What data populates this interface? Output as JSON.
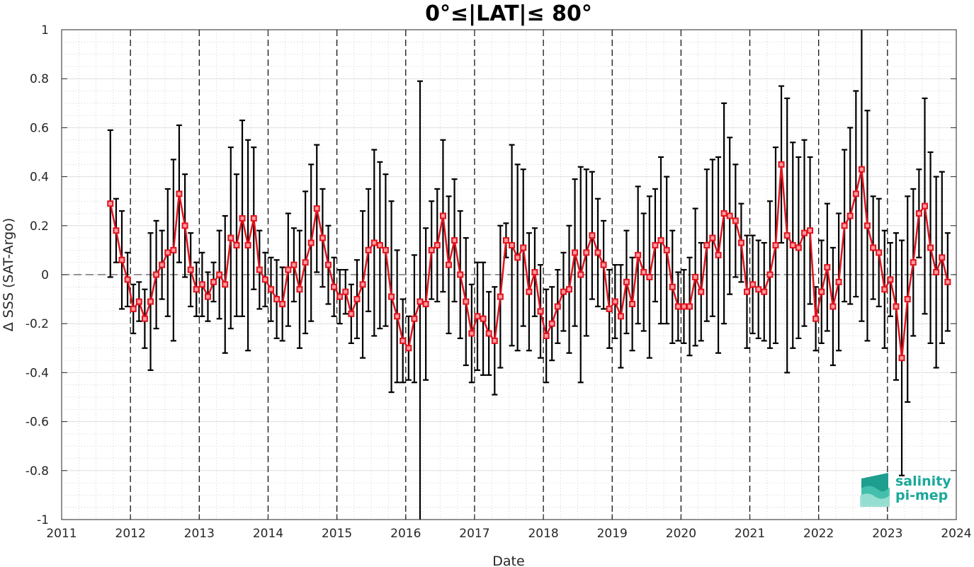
{
  "chart_data": {
    "type": "line",
    "title": "0°≤|LAT|≤ 80°",
    "xlabel": "Date",
    "ylabel": "Δ SSS (SAT-Argo)",
    "xlim": [
      2011,
      2024
    ],
    "ylim": [
      -1,
      1
    ],
    "xticks": [
      "2011",
      "2012",
      "2013",
      "2014",
      "2015",
      "2016",
      "2017",
      "2018",
      "2019",
      "2020",
      "2021",
      "2022",
      "2023",
      "2024"
    ],
    "yticks": [
      "1",
      "0.8",
      "0.6",
      "0.4",
      "0.2",
      "0",
      "-0.2",
      "-0.4",
      "-0.6",
      "-0.8",
      "-1"
    ],
    "grid": true,
    "year_dividers": "dashed vertical lines at each year boundary",
    "zero_line": "dashed horizontal line at 0",
    "series": [
      {
        "color": "#e0141e",
        "marker": "square",
        "error_bar_color": "#000000",
        "x": [
          2011.708,
          2011.792,
          2011.875,
          2011.958,
          2012.042,
          2012.125,
          2012.208,
          2012.292,
          2012.375,
          2012.458,
          2012.542,
          2012.625,
          2012.708,
          2012.792,
          2012.875,
          2012.958,
          2013.042,
          2013.125,
          2013.208,
          2013.292,
          2013.375,
          2013.458,
          2013.542,
          2013.625,
          2013.708,
          2013.792,
          2013.875,
          2013.958,
          2014.042,
          2014.125,
          2014.208,
          2014.292,
          2014.375,
          2014.458,
          2014.542,
          2014.625,
          2014.708,
          2014.792,
          2014.875,
          2014.958,
          2015.042,
          2015.125,
          2015.208,
          2015.292,
          2015.375,
          2015.458,
          2015.542,
          2015.625,
          2015.708,
          2015.792,
          2015.875,
          2015.958,
          2016.042,
          2016.125,
          2016.208,
          2016.292,
          2016.375,
          2016.458,
          2016.542,
          2016.625,
          2016.708,
          2016.792,
          2016.875,
          2016.958,
          2017.042,
          2017.125,
          2017.208,
          2017.292,
          2017.375,
          2017.458,
          2017.542,
          2017.625,
          2017.708,
          2017.792,
          2017.875,
          2017.958,
          2018.042,
          2018.125,
          2018.208,
          2018.292,
          2018.375,
          2018.458,
          2018.542,
          2018.625,
          2018.708,
          2018.792,
          2018.875,
          2018.958,
          2019.042,
          2019.125,
          2019.208,
          2019.292,
          2019.375,
          2019.458,
          2019.542,
          2019.625,
          2019.708,
          2019.792,
          2019.875,
          2019.958,
          2020.042,
          2020.125,
          2020.208,
          2020.292,
          2020.375,
          2020.458,
          2020.542,
          2020.625,
          2020.708,
          2020.792,
          2020.875,
          2020.958,
          2021.042,
          2021.125,
          2021.208,
          2021.292,
          2021.375,
          2021.458,
          2021.542,
          2021.625,
          2021.708,
          2021.792,
          2021.875,
          2021.958,
          2022.042,
          2022.125,
          2022.208,
          2022.292,
          2022.375,
          2022.458,
          2022.542,
          2022.625,
          2022.708,
          2022.792,
          2022.875,
          2022.958,
          2023.042,
          2023.125,
          2023.208,
          2023.292,
          2023.375,
          2023.458,
          2023.542,
          2023.625,
          2023.708,
          2023.792,
          2023.875
        ],
        "y": [
          0.29,
          0.18,
          0.06,
          -0.02,
          -0.14,
          -0.11,
          -0.18,
          -0.11,
          0,
          0.04,
          0.09,
          0.1,
          0.33,
          0.2,
          0.02,
          -0.06,
          -0.04,
          -0.09,
          -0.03,
          0,
          -0.04,
          0.15,
          0.12,
          0.23,
          0.12,
          0.23,
          0.02,
          -0.02,
          -0.06,
          -0.1,
          -0.12,
          0.02,
          0.04,
          -0.06,
          0.05,
          0.13,
          0.27,
          0.15,
          0.04,
          -0.05,
          -0.09,
          -0.07,
          -0.16,
          -0.1,
          -0.04,
          0.1,
          0.13,
          0.12,
          0.1,
          -0.09,
          -0.17,
          -0.27,
          -0.3,
          -0.18,
          -0.11,
          -0.12,
          0.1,
          0.12,
          0.24,
          0.04,
          0.14,
          0,
          -0.11,
          -0.24,
          -0.17,
          -0.18,
          -0.24,
          -0.27,
          -0.09,
          0.14,
          0.12,
          0.07,
          0.11,
          -0.07,
          0.01,
          -0.15,
          -0.25,
          -0.2,
          -0.13,
          -0.07,
          -0.06,
          0.09,
          0,
          0.09,
          0.16,
          0.09,
          0.04,
          -0.14,
          -0.11,
          -0.17,
          -0.03,
          -0.12,
          0.08,
          0.01,
          -0.01,
          0.12,
          0.14,
          0.1,
          -0.05,
          -0.13,
          -0.13,
          -0.13,
          -0.01,
          -0.07,
          0.12,
          0.15,
          0.08,
          0.25,
          0.24,
          0.22,
          0.13,
          -0.07,
          -0.04,
          -0.06,
          -0.07,
          0,
          0.12,
          0.45,
          0.16,
          0.12,
          0.11,
          0.17,
          0.18,
          -0.18,
          -0.07,
          0.03,
          -0.13,
          -0.03,
          0.2,
          0.24,
          0.33,
          0.43,
          0.2,
          0.11,
          0.09,
          -0.06,
          -0.02,
          -0.13,
          -0.34,
          -0.1,
          0.05,
          0.25,
          0.28,
          0.11,
          0.01,
          0.07,
          -0.03
        ],
        "err": [
          0.3,
          0.13,
          0.2,
          0.11,
          0.1,
          0.08,
          0.12,
          0.28,
          0.22,
          0.14,
          0.26,
          0.37,
          0.28,
          0.21,
          0.15,
          0.11,
          0.13,
          0.1,
          0.08,
          0.18,
          0.28,
          0.37,
          0.29,
          0.4,
          0.43,
          0.29,
          0.16,
          0.11,
          0.13,
          0.16,
          0.15,
          0.23,
          0.15,
          0.24,
          0.29,
          0.32,
          0.26,
          0.2,
          0.16,
          0.12,
          0.11,
          0.09,
          0.12,
          0.16,
          0.3,
          0.25,
          0.38,
          0.34,
          0.31,
          0.39,
          0.27,
          0.17,
          0.13,
          0.26,
          0.9,
          0.31,
          0.2,
          0.23,
          0.31,
          0.28,
          0.25,
          0.26,
          0.26,
          0.2,
          0.22,
          0.23,
          0.17,
          0.22,
          0.29,
          0.07,
          0.41,
          0.38,
          0.32,
          0.24,
          0.18,
          0.19,
          0.19,
          0.15,
          0.15,
          0.16,
          0.26,
          0.3,
          0.44,
          0.34,
          0.26,
          0.22,
          0.18,
          0.16,
          0.15,
          0.21,
          0.21,
          0.19,
          0.28,
          0.24,
          0.33,
          0.23,
          0.34,
          0.3,
          0.23,
          0.14,
          0.15,
          0.2,
          0.28,
          0.2,
          0.31,
          0.32,
          0.4,
          0.45,
          0.32,
          0.23,
          0.16,
          0.23,
          0.2,
          0.2,
          0.2,
          0.3,
          0.4,
          0.32,
          0.56,
          0.42,
          0.37,
          0.38,
          0.3,
          0.13,
          0.21,
          0.26,
          0.24,
          0.28,
          0.31,
          0.36,
          0.42,
          0.62,
          0.47,
          0.21,
          0.22,
          0.24,
          0.15,
          0.3,
          0.48,
          0.42,
          0.3,
          0.18,
          0.44,
          0.39,
          0.39,
          0.35,
          0.2
        ]
      }
    ]
  },
  "logo": {
    "line1": "salinity",
    "line2": "pi-mep"
  }
}
